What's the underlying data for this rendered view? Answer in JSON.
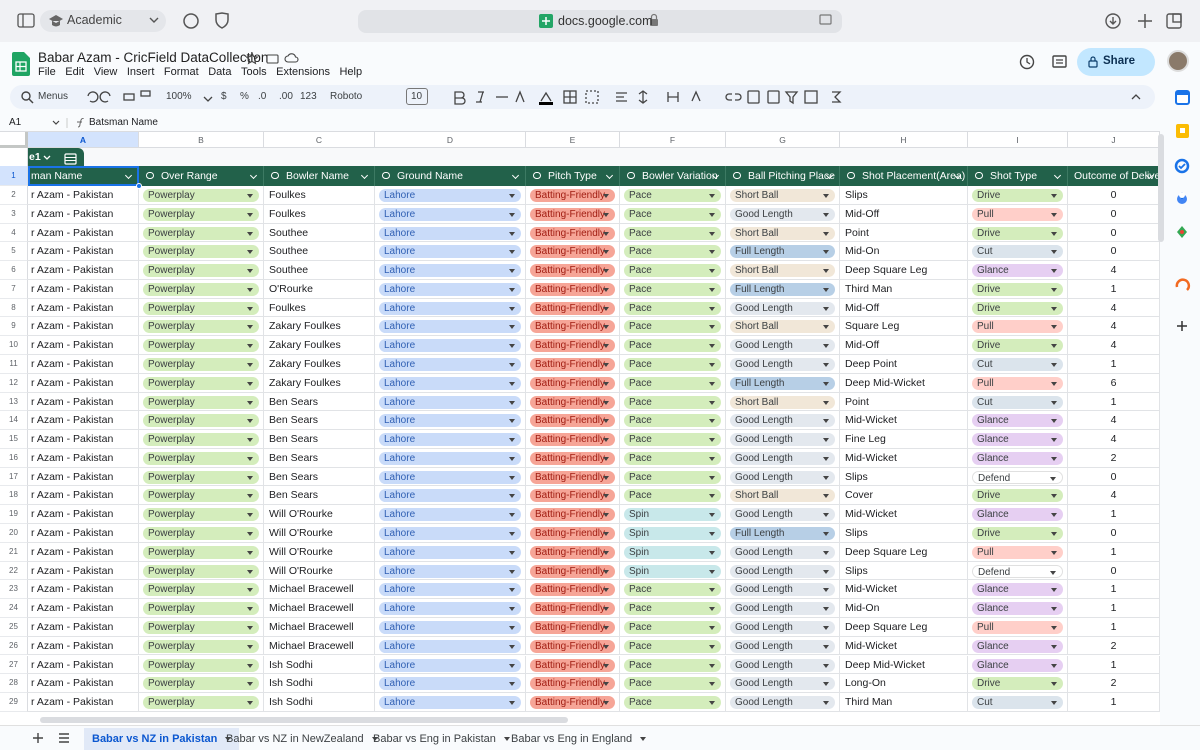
{
  "browser": {
    "profile": "Academic",
    "url": "docs.google.com"
  },
  "doc": {
    "title": "Babar Azam - CricField DataCollection",
    "menus": [
      "File",
      "Edit",
      "View",
      "Insert",
      "Format",
      "Data",
      "Tools",
      "Extensions",
      "Help"
    ],
    "share": "Share"
  },
  "toolbar": {
    "search": "Menus",
    "zoom": "100%",
    "currency": "$",
    "percent": "%",
    "dec_less": ".0",
    "dec_more": ".00",
    "format": "123",
    "font": "Roboto",
    "font_size": "10"
  },
  "formula_bar": {
    "cell": "A1",
    "content": "Batsman Name"
  },
  "sheet": {
    "column_letters": [
      "A",
      "B",
      "C",
      "D",
      "E",
      "F",
      "G",
      "H",
      "I",
      "J"
    ],
    "row_numbers": [
      1,
      2,
      3,
      4,
      5,
      6,
      7,
      8,
      9,
      10,
      11,
      12,
      13,
      14,
      15,
      16,
      17,
      18,
      19,
      20,
      21,
      22,
      23,
      24,
      25,
      26,
      27,
      28,
      29
    ],
    "table_name": "e1",
    "headers": [
      "man Name",
      "Over Range",
      "Bowler Name",
      "Ground Name",
      "Pitch Type",
      "Bowler Variation",
      "Ball Pitching Place",
      "Shot Placement(Area)",
      "Shot Type",
      "Outcome of Delivery"
    ],
    "chip_colors": [
      null,
      {
        "Powerplay": "#d4edbc"
      },
      null,
      {
        "Lahore": "#c9dbf9"
      },
      {
        "Batting-Friendly": "#f6a597"
      },
      {
        "Pace": "#d4edbc",
        "Spin": "#c8e8ea"
      },
      {
        "Short Ball": "#f1e7d8",
        "Good Length": "#e3e8ee",
        "Full Length": "#b7cfe6"
      },
      null,
      {
        "Drive": "#d4edbc",
        "Pull": "#ffcfc9",
        "Cut": "#dbe4ec",
        "Glance": "#e6cff2",
        "Defend": "#ffffff"
      },
      null
    ],
    "rows": [
      [
        "r Azam - Pakistan",
        "Powerplay",
        "Foulkes",
        "Lahore",
        "Batting-Friendly",
        "Pace",
        "Short Ball",
        "Slips",
        "Drive",
        0
      ],
      [
        "r Azam - Pakistan",
        "Powerplay",
        "Foulkes",
        "Lahore",
        "Batting-Friendly",
        "Pace",
        "Good Length",
        "Mid-Off",
        "Pull",
        0
      ],
      [
        "r Azam - Pakistan",
        "Powerplay",
        "Southee",
        "Lahore",
        "Batting-Friendly",
        "Pace",
        "Short Ball",
        "Point",
        "Drive",
        0
      ],
      [
        "r Azam - Pakistan",
        "Powerplay",
        "Southee",
        "Lahore",
        "Batting-Friendly",
        "Pace",
        "Full Length",
        "Mid-On",
        "Cut",
        0
      ],
      [
        "r Azam - Pakistan",
        "Powerplay",
        "Southee",
        "Lahore",
        "Batting-Friendly",
        "Pace",
        "Short Ball",
        "Deep Square Leg",
        "Glance",
        4
      ],
      [
        "r Azam - Pakistan",
        "Powerplay",
        "O'Rourke",
        "Lahore",
        "Batting-Friendly",
        "Pace",
        "Full Length",
        "Third Man",
        "Drive",
        1
      ],
      [
        "r Azam - Pakistan",
        "Powerplay",
        "Foulkes",
        "Lahore",
        "Batting-Friendly",
        "Pace",
        "Good Length",
        "Mid-Off",
        "Drive",
        4
      ],
      [
        "r Azam - Pakistan",
        "Powerplay",
        "Zakary Foulkes",
        "Lahore",
        "Batting-Friendly",
        "Pace",
        "Short Ball",
        "Square Leg",
        "Pull",
        4
      ],
      [
        "r Azam - Pakistan",
        "Powerplay",
        "Zakary Foulkes",
        "Lahore",
        "Batting-Friendly",
        "Pace",
        "Good Length",
        "Mid-Off",
        "Drive",
        4
      ],
      [
        "r Azam - Pakistan",
        "Powerplay",
        "Zakary Foulkes",
        "Lahore",
        "Batting-Friendly",
        "Pace",
        "Good Length",
        "Deep Point",
        "Cut",
        1
      ],
      [
        "r Azam - Pakistan",
        "Powerplay",
        "Zakary Foulkes",
        "Lahore",
        "Batting-Friendly",
        "Pace",
        "Full Length",
        "Deep Mid-Wicket",
        "Pull",
        6
      ],
      [
        "r Azam - Pakistan",
        "Powerplay",
        "Ben Sears",
        "Lahore",
        "Batting-Friendly",
        "Pace",
        "Short Ball",
        "Point",
        "Cut",
        1
      ],
      [
        "r Azam - Pakistan",
        "Powerplay",
        "Ben Sears",
        "Lahore",
        "Batting-Friendly",
        "Pace",
        "Good Length",
        "Mid-Wicket",
        "Glance",
        4
      ],
      [
        "r Azam - Pakistan",
        "Powerplay",
        "Ben Sears",
        "Lahore",
        "Batting-Friendly",
        "Pace",
        "Good Length",
        "Fine Leg",
        "Glance",
        4
      ],
      [
        "r Azam - Pakistan",
        "Powerplay",
        "Ben Sears",
        "Lahore",
        "Batting-Friendly",
        "Pace",
        "Good Length",
        "Mid-Wicket",
        "Glance",
        2
      ],
      [
        "r Azam - Pakistan",
        "Powerplay",
        "Ben Sears",
        "Lahore",
        "Batting-Friendly",
        "Pace",
        "Good Length",
        "Slips",
        "Defend",
        0
      ],
      [
        "r Azam - Pakistan",
        "Powerplay",
        "Ben Sears",
        "Lahore",
        "Batting-Friendly",
        "Pace",
        "Short Ball",
        "Cover",
        "Drive",
        4
      ],
      [
        "r Azam - Pakistan",
        "Powerplay",
        "Will O'Rourke",
        "Lahore",
        "Batting-Friendly",
        "Spin",
        "Good Length",
        "Mid-Wicket",
        "Glance",
        1
      ],
      [
        "r Azam - Pakistan",
        "Powerplay",
        "Will O'Rourke",
        "Lahore",
        "Batting-Friendly",
        "Spin",
        "Full Length",
        "Slips",
        "Drive",
        0
      ],
      [
        "r Azam - Pakistan",
        "Powerplay",
        "Will O'Rourke",
        "Lahore",
        "Batting-Friendly",
        "Spin",
        "Good Length",
        "Deep Square Leg",
        "Pull",
        1
      ],
      [
        "r Azam - Pakistan",
        "Powerplay",
        "Will O'Rourke",
        "Lahore",
        "Batting-Friendly",
        "Spin",
        "Good Length",
        "Slips",
        "Defend",
        0
      ],
      [
        "r Azam - Pakistan",
        "Powerplay",
        "Michael Bracewell",
        "Lahore",
        "Batting-Friendly",
        "Pace",
        "Good Length",
        "Mid-Wicket",
        "Glance",
        1
      ],
      [
        "r Azam - Pakistan",
        "Powerplay",
        "Michael Bracewell",
        "Lahore",
        "Batting-Friendly",
        "Pace",
        "Good Length",
        "Mid-On",
        "Glance",
        1
      ],
      [
        "r Azam - Pakistan",
        "Powerplay",
        "Michael Bracewell",
        "Lahore",
        "Batting-Friendly",
        "Pace",
        "Good Length",
        "Deep Square Leg",
        "Pull",
        1
      ],
      [
        "r Azam - Pakistan",
        "Powerplay",
        "Michael Bracewell",
        "Lahore",
        "Batting-Friendly",
        "Pace",
        "Good Length",
        "Mid-Wicket",
        "Glance",
        2
      ],
      [
        "r Azam - Pakistan",
        "Powerplay",
        "Ish Sodhi",
        "Lahore",
        "Batting-Friendly",
        "Pace",
        "Good Length",
        "Deep Mid-Wicket",
        "Glance",
        1
      ],
      [
        "r Azam - Pakistan",
        "Powerplay",
        "Ish Sodhi",
        "Lahore",
        "Batting-Friendly",
        "Pace",
        "Good Length",
        "Long-On",
        "Drive",
        2
      ],
      [
        "r Azam - Pakistan",
        "Powerplay",
        "Ish Sodhi",
        "Lahore",
        "Batting-Friendly",
        "Pace",
        "Good Length",
        "Third Man",
        "Cut",
        1
      ]
    ]
  },
  "tabs": [
    "Babar vs NZ in Pakistan",
    "Babar vs NZ in NewZealand",
    "Babar vs Eng in Pakistan",
    "Babar vs Eng in England"
  ]
}
